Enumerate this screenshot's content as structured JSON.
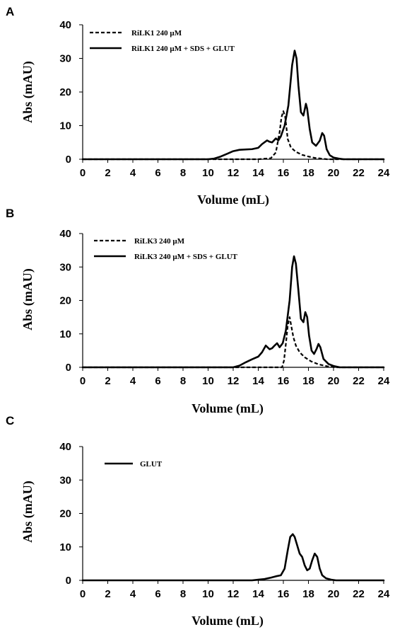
{
  "chart_data": [
    {
      "panel": "A",
      "type": "line",
      "xlabel": "Volume (mL)",
      "ylabel": "Abs (mAU)",
      "xlim": [
        0,
        24
      ],
      "ylim": [
        0,
        40
      ],
      "xticks": [
        0,
        2,
        4,
        6,
        8,
        10,
        12,
        14,
        16,
        18,
        20,
        22,
        24
      ],
      "yticks": [
        0,
        10,
        20,
        30,
        40
      ],
      "grid": false,
      "legend": "top-left",
      "series": [
        {
          "name": "RiLK1 240 µM",
          "style": "dashed",
          "x": [
            0,
            14,
            15,
            15.4,
            15.7,
            15.85,
            16.0,
            16.15,
            16.35,
            16.6,
            17.0,
            17.5,
            18.0,
            18.5,
            19.0,
            19.5,
            24
          ],
          "y": [
            0,
            0,
            0.3,
            2,
            8,
            12.5,
            14.3,
            12.5,
            6,
            3.5,
            2.2,
            1.3,
            0.8,
            0.4,
            0.2,
            0,
            0
          ]
        },
        {
          "name": "RiLK1 240 µM + SDS + GLUT",
          "style": "solid",
          "x": [
            0,
            10.0,
            10.5,
            11,
            11.5,
            12,
            12.5,
            13,
            13.5,
            14,
            14.3,
            14.7,
            14.9,
            15.1,
            15.4,
            15.6,
            15.8,
            16.1,
            16.4,
            16.7,
            16.9,
            17.05,
            17.2,
            17.4,
            17.6,
            17.8,
            17.9,
            18.1,
            18.3,
            18.6,
            18.9,
            19.1,
            19.25,
            19.45,
            19.7,
            20.0,
            20.4,
            20.8,
            24
          ],
          "y": [
            0,
            0,
            0.2,
            0.8,
            1.6,
            2.4,
            2.8,
            2.9,
            3.0,
            3.4,
            4.5,
            5.6,
            5.2,
            5.0,
            6.2,
            5.6,
            6.8,
            10.0,
            16.0,
            28.0,
            32.3,
            30.0,
            22.0,
            14.0,
            13.0,
            16.5,
            15.0,
            9.0,
            5.0,
            4.0,
            5.5,
            7.8,
            7.0,
            3.0,
            1.2,
            0.5,
            0.2,
            0,
            0
          ]
        }
      ]
    },
    {
      "panel": "B",
      "type": "line",
      "xlabel": "Volume (mL)",
      "ylabel": "Abs (mAU)",
      "xlim": [
        0,
        24
      ],
      "ylim": [
        0,
        40
      ],
      "xticks": [
        0,
        2,
        4,
        6,
        8,
        10,
        12,
        14,
        16,
        18,
        20,
        22,
        24
      ],
      "yticks": [
        0,
        10,
        20,
        30,
        40
      ],
      "grid": false,
      "legend": "top-left",
      "series": [
        {
          "name": "RiLK3 240 µM",
          "style": "dashed",
          "x": [
            0,
            15.9,
            16.05,
            16.2,
            16.35,
            16.5,
            16.65,
            16.8,
            17.0,
            17.3,
            17.7,
            18.2,
            18.8,
            19.5,
            20.2,
            24
          ],
          "y": [
            0,
            0,
            2,
            7,
            12.5,
            15.0,
            12.0,
            9.0,
            6.5,
            4.5,
            3.0,
            1.8,
            0.9,
            0.3,
            0,
            0
          ]
        },
        {
          "name": "RiLK3 240 µM + SDS + GLUT",
          "style": "solid",
          "x": [
            0,
            12.0,
            12.5,
            13,
            13.5,
            14,
            14.3,
            14.6,
            14.9,
            15.1,
            15.3,
            15.5,
            15.7,
            15.95,
            16.2,
            16.5,
            16.7,
            16.85,
            17.0,
            17.2,
            17.4,
            17.6,
            17.75,
            17.9,
            18.05,
            18.25,
            18.45,
            18.65,
            18.8,
            18.95,
            19.2,
            19.6,
            20.0,
            20.5,
            24
          ],
          "y": [
            0,
            0,
            0.5,
            1.5,
            2.4,
            3.2,
            4.5,
            6.5,
            5.4,
            5.7,
            6.5,
            7.2,
            6.0,
            7.2,
            11.0,
            20.0,
            30.0,
            33.2,
            31.0,
            23.0,
            14.5,
            13.5,
            16.5,
            15.0,
            9.5,
            5.0,
            4.0,
            5.5,
            7.0,
            6.0,
            2.5,
            1.0,
            0.4,
            0,
            0
          ]
        }
      ]
    },
    {
      "panel": "C",
      "type": "line",
      "xlabel": "Volume (mL)",
      "ylabel": "Abs (mAU)",
      "xlim": [
        0,
        24
      ],
      "ylim": [
        0,
        40
      ],
      "xticks": [
        0,
        2,
        4,
        6,
        8,
        10,
        12,
        14,
        16,
        18,
        20,
        22,
        24
      ],
      "yticks": [
        0,
        10,
        20,
        30,
        40
      ],
      "grid": false,
      "legend": "top-left",
      "series": [
        {
          "name": "GLUT",
          "style": "solid",
          "x": [
            0,
            13.5,
            14.0,
            14.5,
            15.0,
            15.4,
            15.8,
            16.1,
            16.35,
            16.55,
            16.75,
            16.9,
            17.1,
            17.3,
            17.5,
            17.7,
            17.9,
            18.1,
            18.3,
            18.5,
            18.7,
            18.9,
            19.1,
            19.4,
            19.8,
            20.2,
            24
          ],
          "y": [
            0,
            0,
            0.2,
            0.4,
            0.8,
            1.2,
            1.5,
            3.5,
            9.0,
            13.0,
            13.8,
            13.0,
            10.5,
            8.0,
            7.0,
            4.5,
            3.0,
            3.5,
            6.0,
            8.0,
            7.0,
            3.5,
            1.5,
            0.6,
            0.2,
            0,
            0
          ]
        }
      ]
    }
  ]
}
